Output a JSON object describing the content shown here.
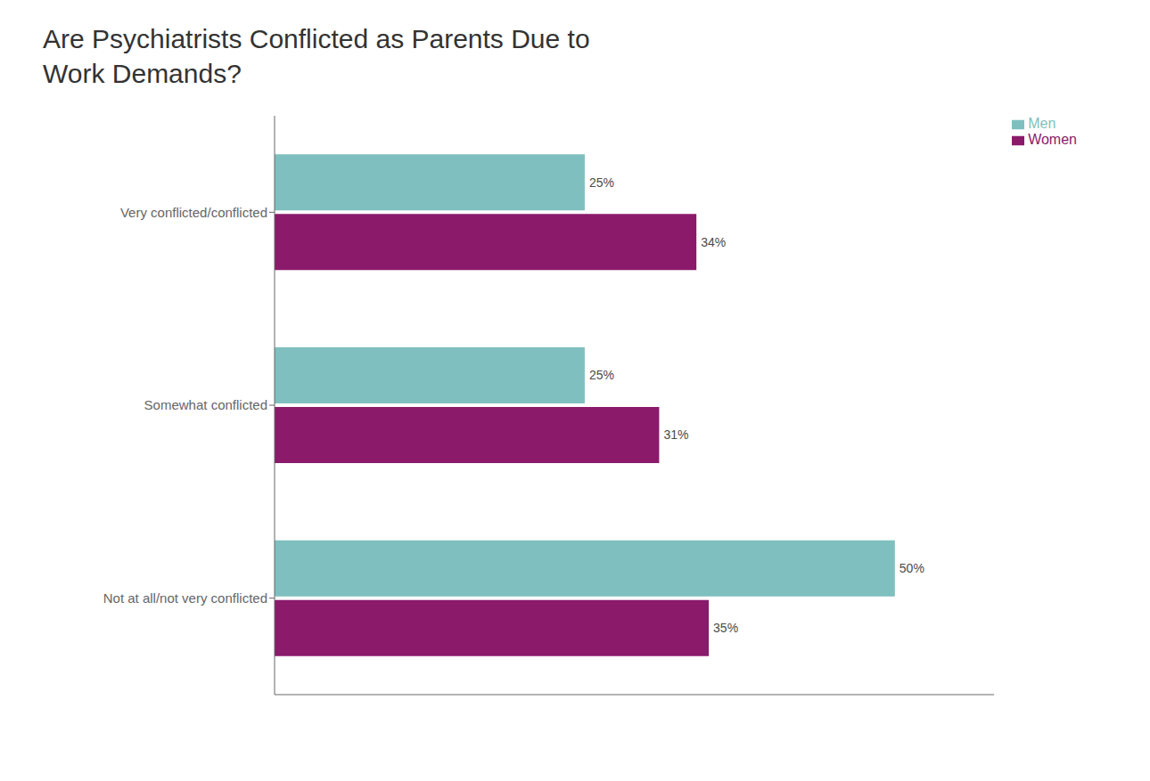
{
  "chart_data": {
    "type": "bar",
    "title": "Are Psychiatrists Conflicted as Parents Due to\nWork Demands?",
    "orientation": "horizontal",
    "categories": [
      "Very conflicted/conflicted",
      "Somewhat conflicted",
      "Not at all/not very conflicted"
    ],
    "series": [
      {
        "name": "Men",
        "color": "#7fbfbf",
        "values": [
          25,
          25,
          50
        ],
        "value_labels": [
          "25%",
          "25%",
          "50%"
        ]
      },
      {
        "name": "Women",
        "color": "#8b1a6b",
        "values": [
          34,
          31,
          35
        ],
        "value_labels": [
          "34%",
          "31%",
          "35%"
        ]
      }
    ],
    "xlim": [
      0,
      58
    ],
    "data_labels": true,
    "tick_labels": "y",
    "grid": false,
    "legend": "right"
  }
}
